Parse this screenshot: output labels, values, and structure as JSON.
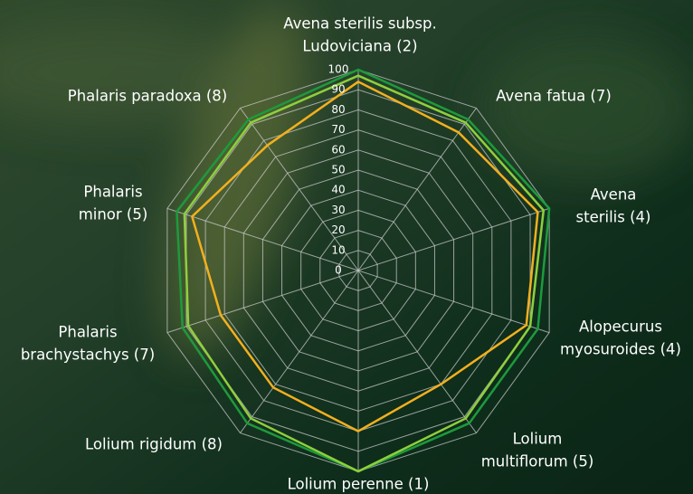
{
  "chart_data": {
    "type": "radar",
    "categories": [
      [
        "Avena sterilis subsp.",
        "Ludoviciana (2)"
      ],
      [
        "Avena fatua (7)"
      ],
      [
        "Avena",
        "sterilis (4)"
      ],
      [
        "Alopecurus",
        "myosuroides (4)"
      ],
      [
        "Lolium",
        "multiflorum (5)"
      ],
      [
        "Lolium perenne (1)"
      ],
      [
        "Lolium rigidum (8)"
      ],
      [
        "Phalaris",
        "brachystachys (7)"
      ],
      [
        "Phalaris",
        "minor (5)"
      ],
      [
        "Phalaris paradoxa (8)"
      ]
    ],
    "series": [
      {
        "color": "#1e9a3c",
        "values": [
          100,
          93,
          100,
          94,
          94,
          100,
          94,
          92,
          95,
          93
        ]
      },
      {
        "color": "#8fcf3c",
        "values": [
          97,
          91,
          97,
          90,
          91,
          100,
          91,
          89,
          91,
          91
        ]
      },
      {
        "color": "#f2b01e",
        "values": [
          94,
          85,
          94,
          88,
          70,
          80,
          72,
          72,
          87,
          77
        ]
      }
    ],
    "ylim": [
      0,
      100
    ],
    "yticks": [
      0,
      10,
      20,
      30,
      40,
      50,
      60,
      70,
      80,
      90,
      100
    ],
    "grid": true
  }
}
